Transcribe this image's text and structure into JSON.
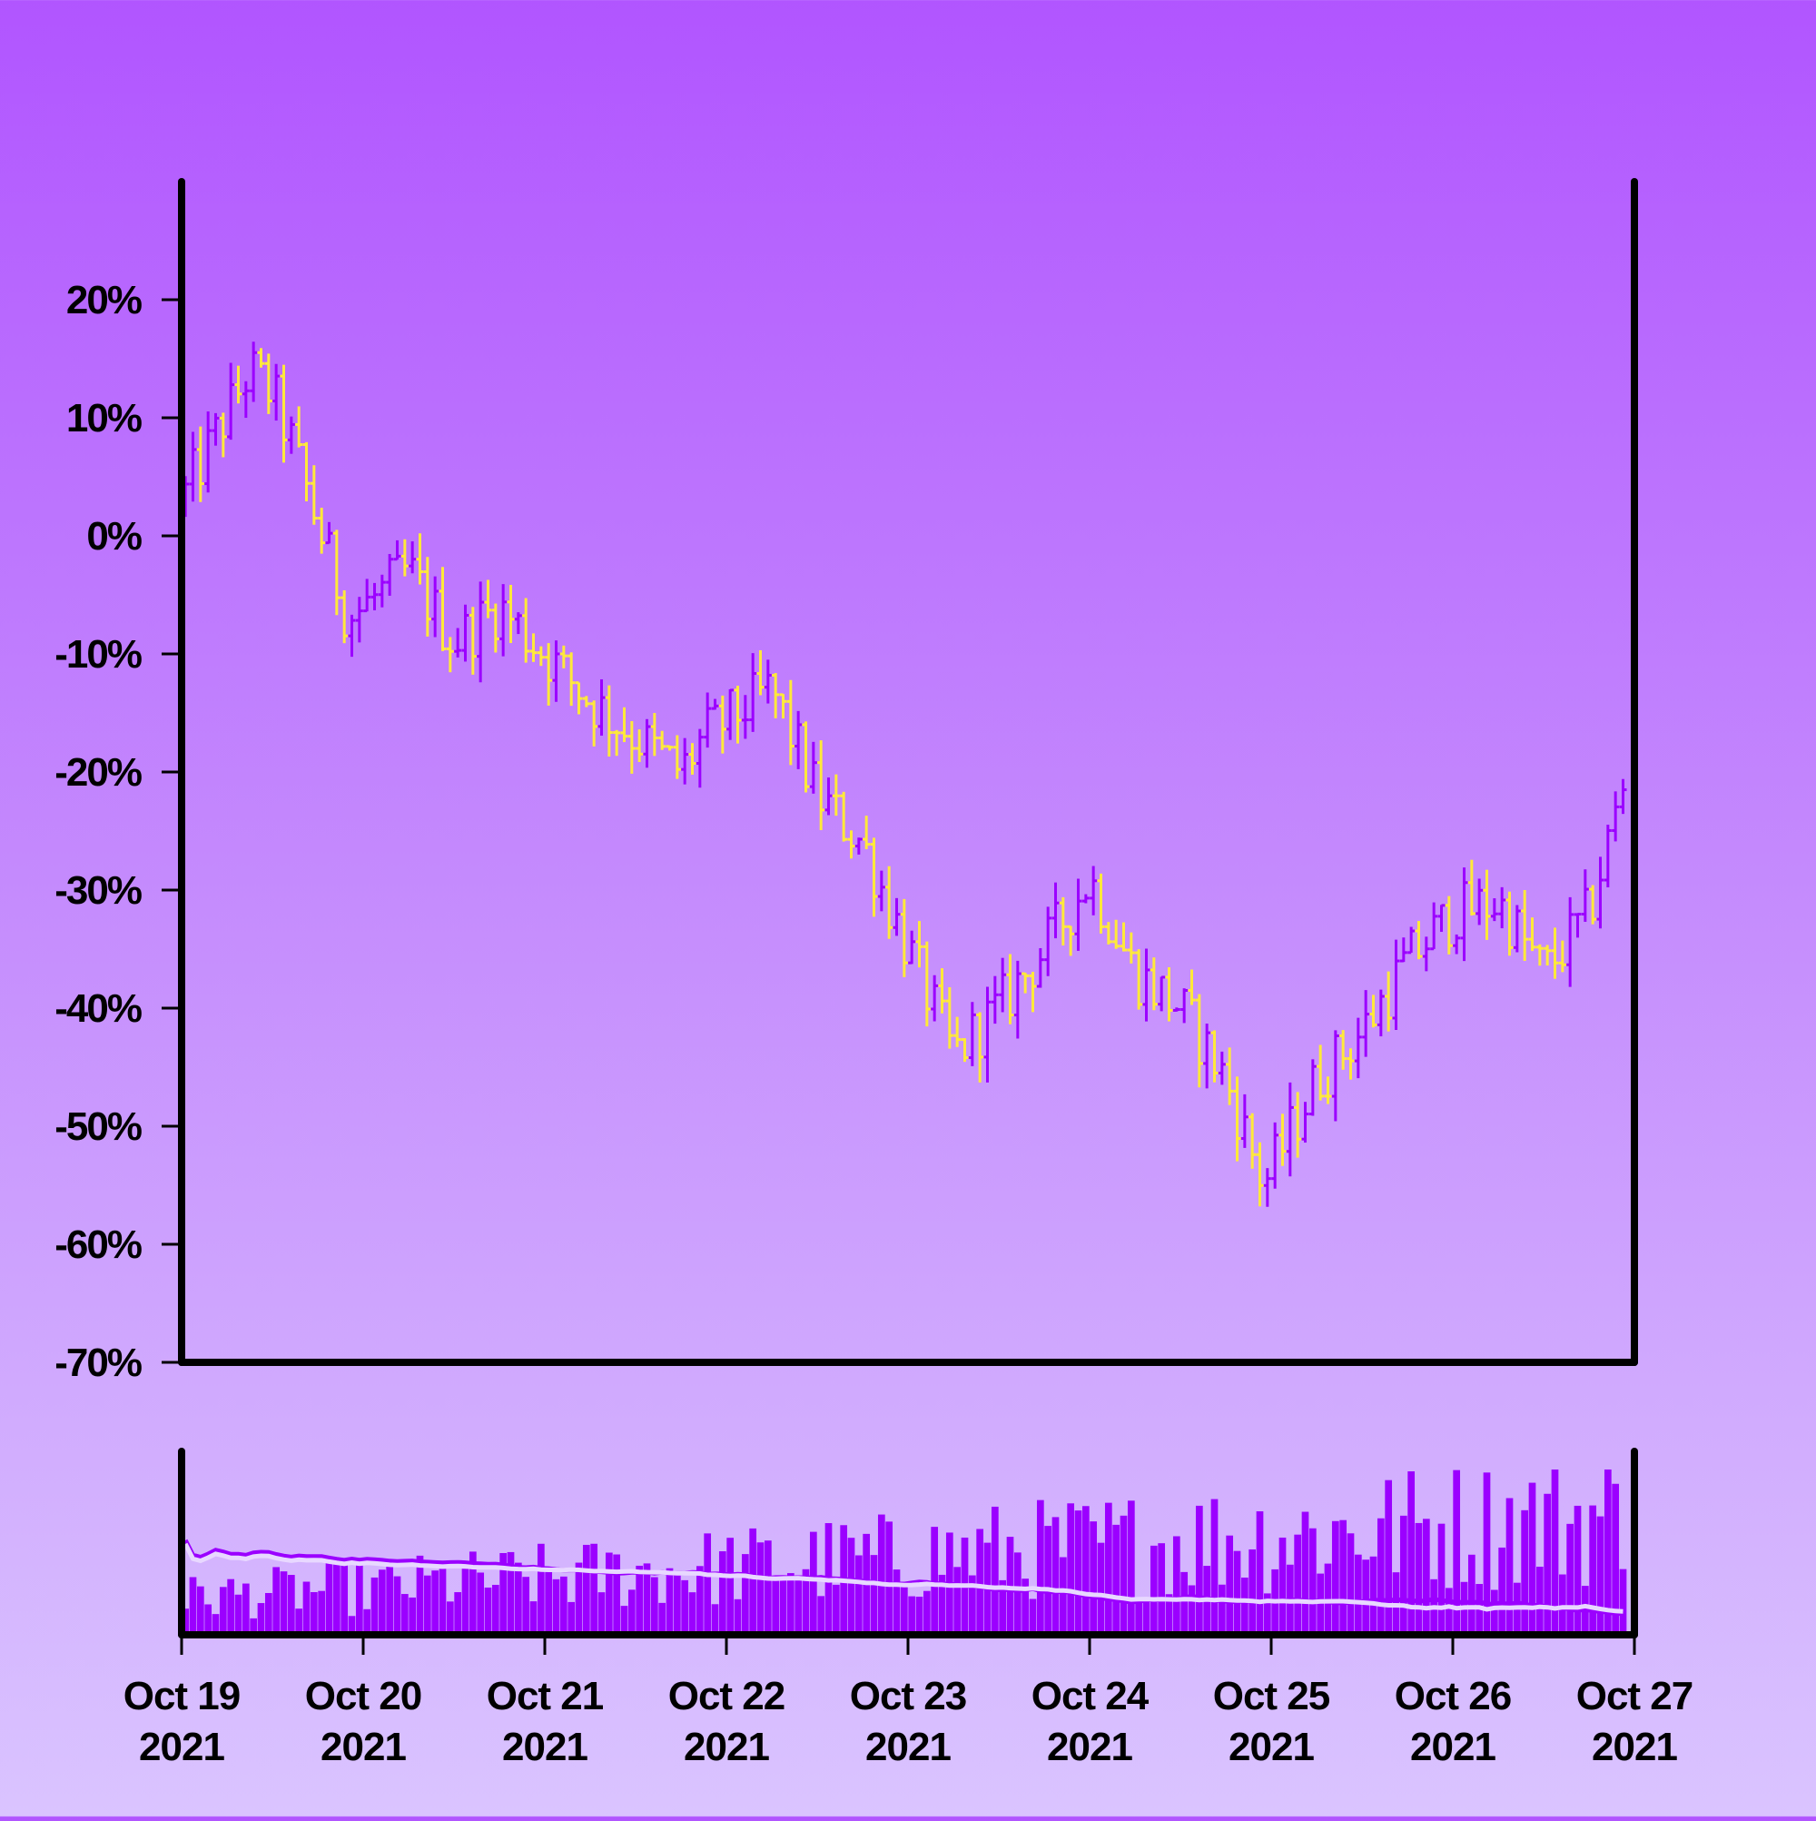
{
  "colors": {
    "background_top": "#b155ff",
    "background_bottom": "#dac4ff",
    "up_bar": "#9b00ff",
    "down_bar": "#ffe93a",
    "volume_bar": "#9b00ff",
    "volume_ma_primary": "#9b00ff",
    "volume_ma_secondary": "#e8d8ff",
    "axis": "#000000"
  },
  "chart_data": {
    "type": "ohlc",
    "title": "",
    "xlabel": "",
    "ylabel": "",
    "y_unit": "percent",
    "ylim": [
      -70,
      30
    ],
    "yticks": [
      20,
      10,
      0,
      -10,
      -20,
      -30,
      -40,
      -50,
      -60,
      -70
    ],
    "ytick_labels": [
      "20%",
      "10%",
      "0%",
      "-10%",
      "-20%",
      "-30%",
      "-40%",
      "-50%",
      "-60%",
      "-70%"
    ],
    "x_start": "2021-10-19",
    "x_end": "2021-10-27",
    "xtick_labels": [
      [
        "Oct 19",
        "2021"
      ],
      [
        "Oct 20",
        "2021"
      ],
      [
        "Oct 21",
        "2021"
      ],
      [
        "Oct 22",
        "2021"
      ],
      [
        "Oct 23",
        "2021"
      ],
      [
        "Oct 24",
        "2021"
      ],
      [
        "Oct 25",
        "2021"
      ],
      [
        "Oct 26",
        "2021"
      ],
      [
        "Oct 27",
        "2021"
      ]
    ],
    "close_path_anchors": [
      [
        "2021-10-19T00:00",
        3
      ],
      [
        "2021-10-19T09:00",
        14
      ],
      [
        "2021-10-19T12:00",
        12
      ],
      [
        "2021-10-19T15:00",
        7
      ],
      [
        "2021-10-19T22:00",
        -7
      ],
      [
        "2021-10-20T06:00",
        -3
      ],
      [
        "2021-10-20T12:00",
        -9
      ],
      [
        "2021-10-20T18:00",
        -6
      ],
      [
        "2021-10-21T06:00",
        -14
      ],
      [
        "2021-10-21T18:00",
        -20
      ],
      [
        "2021-10-21T21:00",
        -17
      ],
      [
        "2021-10-22T06:00",
        -13
      ],
      [
        "2021-10-22T12:00",
        -22
      ],
      [
        "2021-10-22T18:00",
        -26
      ],
      [
        "2021-10-23T00:00",
        -35
      ],
      [
        "2021-10-23T06:00",
        -44
      ],
      [
        "2021-10-23T12:00",
        -40
      ],
      [
        "2021-10-23T18:00",
        -35
      ],
      [
        "2021-10-24T00:00",
        -29
      ],
      [
        "2021-10-24T06:00",
        -37
      ],
      [
        "2021-10-24T12:00",
        -40
      ],
      [
        "2021-10-24T18:00",
        -46
      ],
      [
        "2021-10-24T23:00",
        -55
      ],
      [
        "2021-10-25T06:00",
        -46
      ],
      [
        "2021-10-25T12:00",
        -42
      ],
      [
        "2021-10-25T18:00",
        -36
      ],
      [
        "2021-10-26T00:00",
        -32
      ],
      [
        "2021-10-26T06:00",
        -31
      ],
      [
        "2021-10-26T12:00",
        -37
      ],
      [
        "2021-10-26T18:00",
        -32
      ],
      [
        "2021-10-26T23:00",
        -20
      ]
    ],
    "bar_interval_hours": 1,
    "volume_panel": {
      "has_y_axis_labels": false,
      "moving_average_lines": 2
    }
  }
}
